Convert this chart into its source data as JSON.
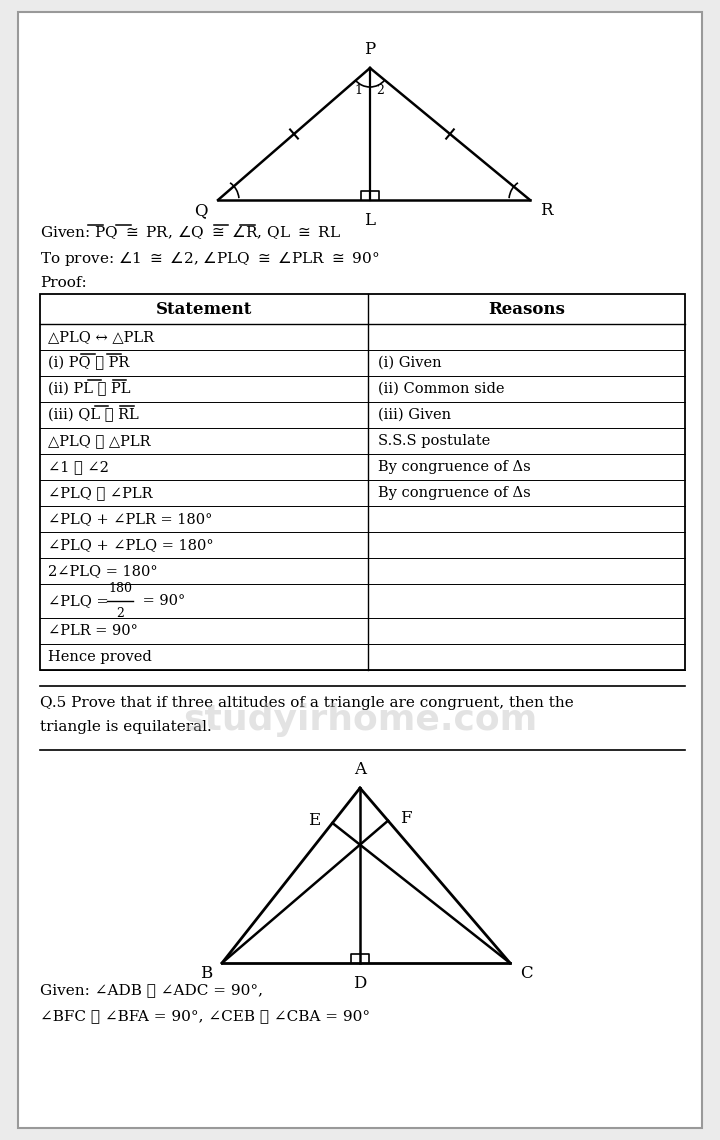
{
  "bg_color": "#ebebeb",
  "page_bg": "#ffffff",
  "text_color": "#111111",
  "table_statements": [
    "△PLQ ↔ △PLR",
    "(i) PQ ≅ PR",
    "(ii) PL ≅ PL",
    "(iii) QL ≅ RL",
    "△PLQ ≅ △PLR",
    "∠1 ≅ ∠2",
    "∠PLQ ≅ ∠PLR",
    "∠PLQ + ∠PLR = 180°",
    "∠PLQ + ∠PLQ = 180°",
    "2∠PLQ = 180°",
    "FRACTION_ROW",
    "∠PLR = 90°",
    "Hence proved"
  ],
  "table_reasons": [
    "",
    "(i) Given",
    "(ii) Common side",
    "(iii) Given",
    "S.S.S postulate",
    "By congruence of Δs",
    "By congruence of Δs",
    "",
    "",
    "",
    "",
    "",
    ""
  ]
}
